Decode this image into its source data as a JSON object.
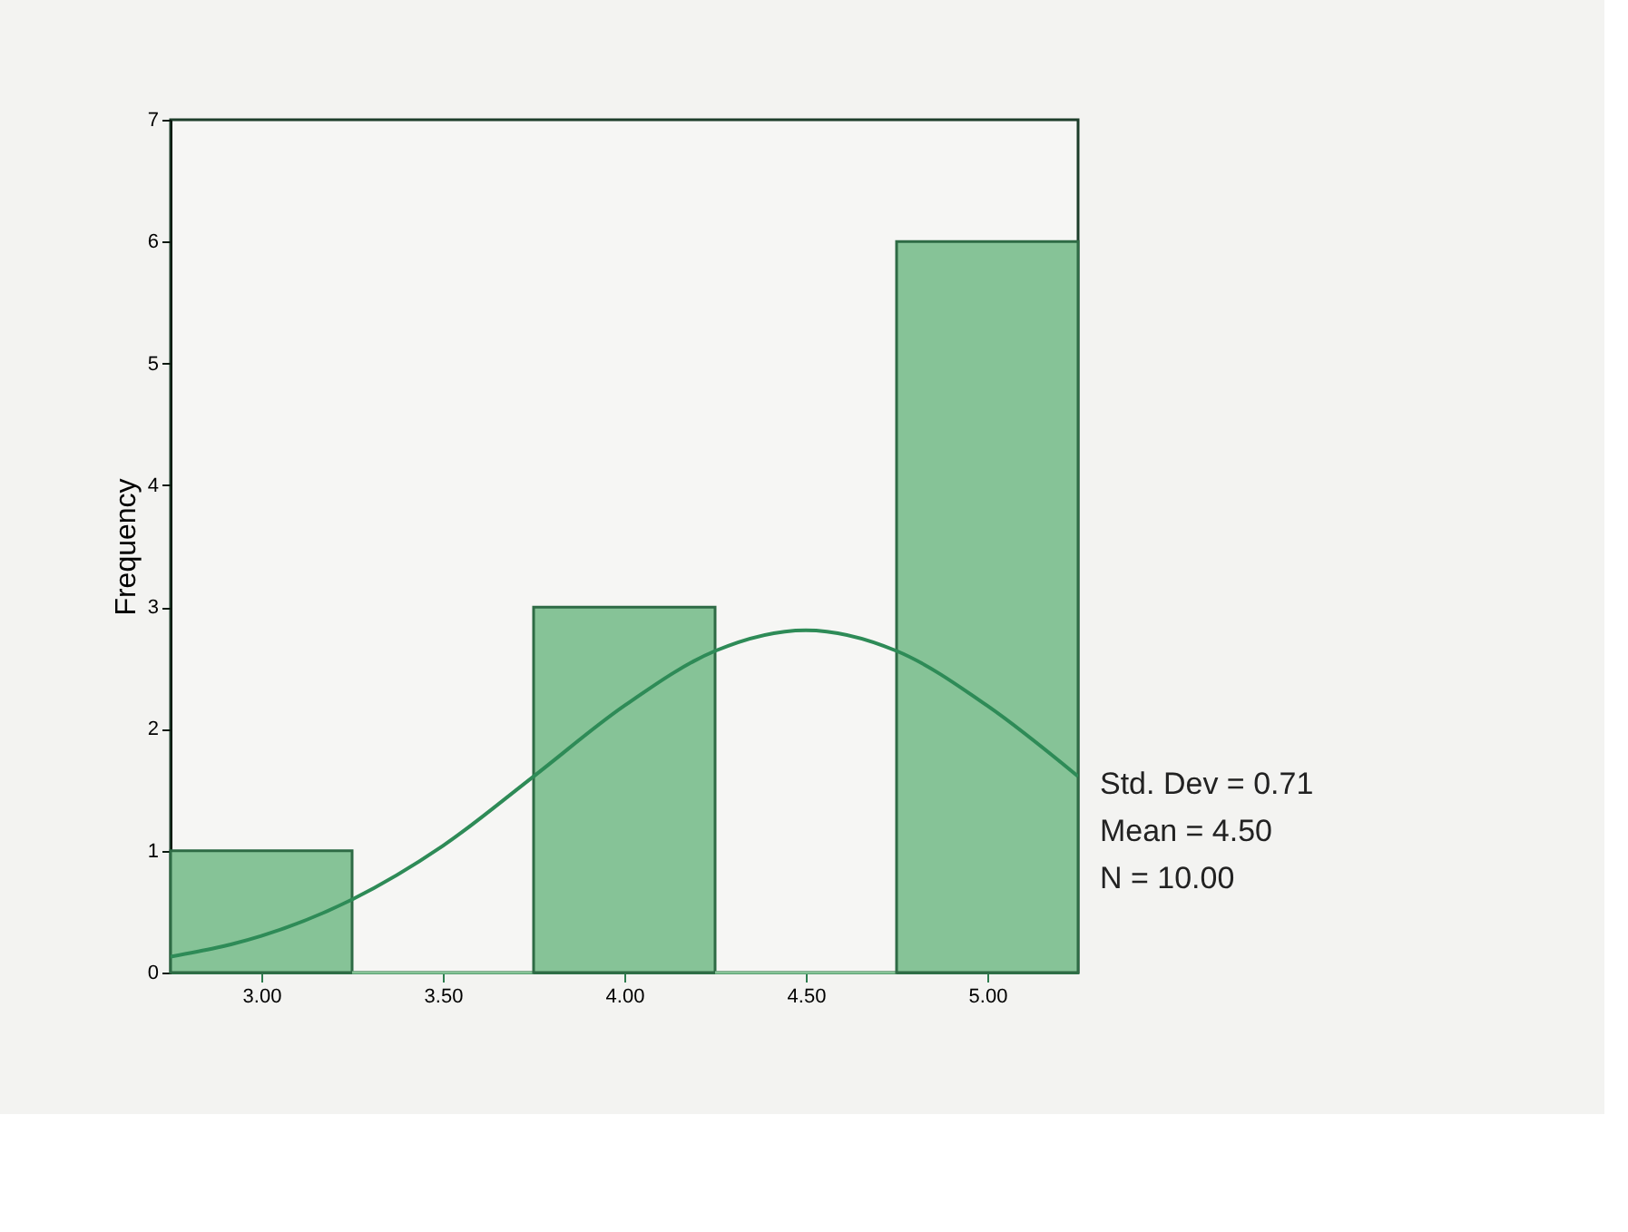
{
  "chart_data": {
    "type": "histogram",
    "ylabel": "Frequency",
    "bins": [
      2.75,
      3.25,
      3.75,
      4.25,
      4.75,
      5.25
    ],
    "values": [
      1,
      0,
      3,
      0,
      6
    ],
    "color": "#86c397",
    "series": [
      {
        "type": "line",
        "color": "#2e8b57",
        "x": [
          2.75,
          3.0,
          3.25,
          3.5,
          3.75,
          4.0,
          4.25,
          4.5,
          4.75,
          5.0,
          5.25
        ],
        "values": [
          0.13,
          0.3,
          0.6,
          1.04,
          1.61,
          2.19,
          2.64,
          2.81,
          2.64,
          2.19,
          1.61
        ]
      }
    ],
    "xlim": [
      2.75,
      5.25
    ],
    "xticks": [
      {
        "value": 3,
        "label": "3.00"
      },
      {
        "value": 3.5,
        "label": "3.50"
      },
      {
        "value": 4,
        "label": "4.00"
      },
      {
        "value": 4.5,
        "label": "4.50"
      },
      {
        "value": 5,
        "label": "5.00"
      }
    ],
    "ylim": [
      0,
      7
    ],
    "yticks": [
      0,
      1,
      2,
      3,
      4,
      5,
      6,
      7
    ],
    "grid": false,
    "annotations": [
      "Std. Dev = 0.71",
      "Mean = 4.50",
      "N = 10.00"
    ]
  }
}
